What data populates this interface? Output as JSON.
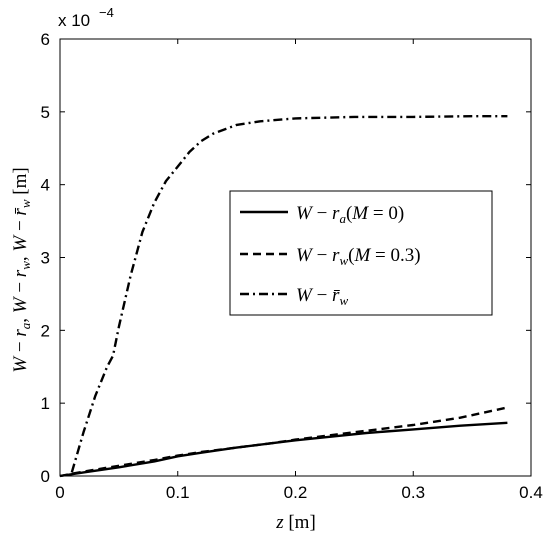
{
  "chart_data": {
    "type": "line",
    "xlabel": "z [m]",
    "ylabel": "W − r_a, W − r_w, W − r̄_w [m]",
    "xlim": [
      0,
      0.4
    ],
    "ylim": [
      0,
      6
    ],
    "y_multiplier": "x 10^-4",
    "x_ticks": [
      "0",
      "0.1",
      "0.2",
      "0.3",
      "0.4"
    ],
    "y_ticks": [
      "0",
      "1",
      "2",
      "3",
      "4",
      "5",
      "6"
    ],
    "grid": false,
    "legend_position": "center-right",
    "series": [
      {
        "name": "W − r_a(M = 0)",
        "style": "solid",
        "x": [
          0,
          0.02,
          0.05,
          0.08,
          0.1,
          0.12,
          0.15,
          0.18,
          0.2,
          0.23,
          0.26,
          0.3,
          0.34,
          0.38
        ],
        "y": [
          0,
          0.05,
          0.12,
          0.2,
          0.27,
          0.32,
          0.39,
          0.45,
          0.49,
          0.54,
          0.59,
          0.64,
          0.69,
          0.73
        ]
      },
      {
        "name": "W − r_w(M = 0.3)",
        "style": "dashed",
        "x": [
          0,
          0.02,
          0.05,
          0.08,
          0.1,
          0.12,
          0.15,
          0.18,
          0.2,
          0.23,
          0.26,
          0.3,
          0.34,
          0.38
        ],
        "y": [
          0,
          0.06,
          0.14,
          0.22,
          0.28,
          0.33,
          0.39,
          0.45,
          0.5,
          0.56,
          0.62,
          0.7,
          0.8,
          0.94
        ]
      },
      {
        "name": "W − r̄_w",
        "style": "dashdot",
        "x": [
          0.01,
          0.02,
          0.03,
          0.04,
          0.045,
          0.05,
          0.06,
          0.07,
          0.08,
          0.09,
          0.1,
          0.11,
          0.12,
          0.13,
          0.15,
          0.17,
          0.2,
          0.25,
          0.3,
          0.35,
          0.38
        ],
        "y": [
          0.05,
          0.6,
          1.1,
          1.5,
          1.65,
          2.05,
          2.75,
          3.35,
          3.75,
          4.05,
          4.25,
          4.45,
          4.6,
          4.7,
          4.82,
          4.87,
          4.91,
          4.93,
          4.93,
          4.94,
          4.94
        ]
      }
    ]
  }
}
